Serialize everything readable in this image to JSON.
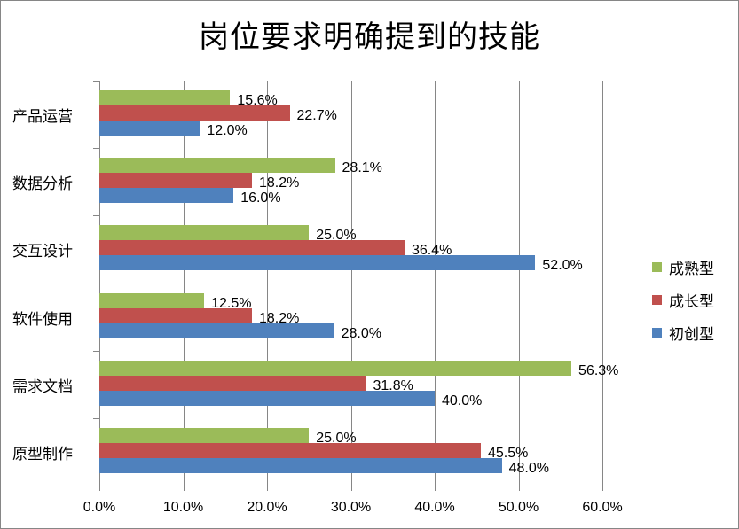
{
  "chart_data": {
    "type": "bar",
    "orientation": "horizontal",
    "title": "岗位要求明确提到的技能",
    "xlabel": "",
    "ylabel": "",
    "xlim": [
      0,
      60
    ],
    "x_ticks": [
      "0.0%",
      "10.0%",
      "20.0%",
      "30.0%",
      "40.0%",
      "50.0%",
      "60.0%"
    ],
    "grid": true,
    "legend_position": "right",
    "categories": [
      "产品运营",
      "数据分析",
      "交互设计",
      "软件使用",
      "需求文档",
      "原型制作"
    ],
    "series": [
      {
        "name": "成熟型",
        "color": "#9BBB59",
        "values": [
          15.6,
          28.1,
          25.0,
          12.5,
          56.3,
          25.0
        ],
        "labels": [
          "15.6%",
          "28.1%",
          "25.0%",
          "12.5%",
          "56.3%",
          "25.0%"
        ]
      },
      {
        "name": "成长型",
        "color": "#C0504D",
        "values": [
          22.7,
          18.2,
          36.4,
          18.2,
          31.8,
          45.5
        ],
        "labels": [
          "22.7%",
          "18.2%",
          "36.4%",
          "18.2%",
          "31.8%",
          "45.5%"
        ]
      },
      {
        "name": "初创型",
        "color": "#4F81BD",
        "values": [
          12.0,
          16.0,
          52.0,
          28.0,
          40.0,
          48.0
        ],
        "labels": [
          "12.0%",
          "16.0%",
          "52.0%",
          "28.0%",
          "40.0%",
          "48.0%"
        ]
      }
    ]
  }
}
